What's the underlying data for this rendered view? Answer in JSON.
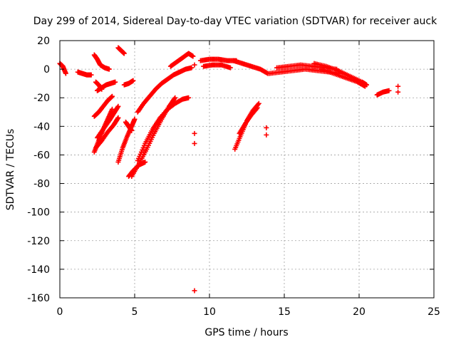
{
  "chart_data": {
    "type": "scatter",
    "title": "Day 299 of 2014, Sidereal Day-to-day VTEC variation (SDTVAR) for receiver auck",
    "xlabel": "GPS time / hours",
    "ylabel": "SDTVAR / TECUs",
    "xlim": [
      0,
      25
    ],
    "ylim": [
      -160,
      20
    ],
    "xticks": [
      0,
      5,
      10,
      15,
      20,
      25
    ],
    "yticks": [
      20,
      0,
      -20,
      -40,
      -60,
      -80,
      -100,
      -120,
      -140,
      -160
    ],
    "grid": true,
    "marker": "plus",
    "color": "#ff0000",
    "series": [
      {
        "name": "arc-early-0",
        "x": [
          0.0,
          0.2,
          0.4
        ],
        "y": [
          4,
          2,
          -3
        ]
      },
      {
        "name": "arc-early-1",
        "x": [
          1.2,
          1.5,
          1.8,
          2.1
        ],
        "y": [
          -2,
          -3,
          -4,
          -4
        ]
      },
      {
        "name": "arc-early-2",
        "x": [
          2.3,
          2.5,
          2.7,
          3.0,
          3.3
        ],
        "y": [
          10,
          7,
          3,
          1,
          0
        ]
      },
      {
        "name": "arc-early-3",
        "x": [
          2.4,
          2.6,
          2.8
        ],
        "y": [
          -9,
          -11,
          -14
        ]
      },
      {
        "name": "arc-early-4",
        "x": [
          2.5,
          2.8,
          3.1,
          3.4,
          3.7
        ],
        "y": [
          -15,
          -13,
          -11,
          -10,
          -9
        ]
      },
      {
        "name": "arc-early-5",
        "x": [
          3.9,
          4.1,
          4.3
        ],
        "y": [
          15,
          13,
          11
        ]
      },
      {
        "name": "arc-early-6",
        "x": [
          4.3,
          4.6,
          4.9
        ],
        "y": [
          -11,
          -10,
          -8
        ]
      },
      {
        "name": "arc-a",
        "x": [
          2.3,
          2.6,
          2.9,
          3.2,
          3.5
        ],
        "y": [
          -33,
          -30,
          -26,
          -22,
          -19
        ]
      },
      {
        "name": "arc-b",
        "x": [
          2.3,
          2.6,
          2.9,
          3.2,
          3.5
        ],
        "y": [
          -58,
          -50,
          -42,
          -35,
          -28
        ]
      },
      {
        "name": "arc-c",
        "x": [
          2.4,
          2.8,
          3.2,
          3.6,
          3.9
        ],
        "y": [
          -55,
          -50,
          -44,
          -39,
          -34
        ]
      },
      {
        "name": "arc-d",
        "x": [
          2.5,
          2.9,
          3.3,
          3.6,
          3.9
        ],
        "y": [
          -48,
          -42,
          -36,
          -31,
          -26
        ]
      },
      {
        "name": "arc-e",
        "x": [
          3.9,
          4.2,
          4.5,
          4.8,
          5.0
        ],
        "y": [
          -65,
          -55,
          -47,
          -40,
          -35
        ]
      },
      {
        "name": "arc-f",
        "x": [
          4.4,
          4.6,
          4.8
        ],
        "y": [
          -37,
          -40,
          -43
        ]
      },
      {
        "name": "arc-g",
        "x": [
          4.6,
          4.9,
          5.3,
          5.7
        ],
        "y": [
          -75,
          -71,
          -67,
          -65
        ]
      },
      {
        "name": "arc-h",
        "x": [
          5.2,
          5.6,
          6.0,
          6.4,
          6.8,
          7.2,
          7.6,
          8.0,
          8.4,
          8.8
        ],
        "y": [
          -30,
          -24,
          -19,
          -14,
          -10,
          -7,
          -4,
          -2,
          0,
          1
        ]
      },
      {
        "name": "arc-i",
        "x": [
          4.8,
          5.3,
          5.8,
          6.3,
          6.8,
          7.3,
          7.7
        ],
        "y": [
          -75,
          -66,
          -56,
          -45,
          -35,
          -26,
          -20
        ]
      },
      {
        "name": "arc-j",
        "x": [
          5.2,
          5.7,
          6.2,
          6.7,
          7.2,
          7.7,
          8.2,
          8.6
        ],
        "y": [
          -64,
          -52,
          -42,
          -34,
          -28,
          -24,
          -21,
          -20
        ]
      },
      {
        "name": "arc-k",
        "x": [
          7.4,
          7.8,
          8.2,
          8.6,
          8.9
        ],
        "y": [
          2,
          5,
          8,
          11,
          9
        ]
      },
      {
        "name": "arc-l",
        "x": [
          9.4,
          10.0,
          10.6,
          11.2,
          11.8
        ],
        "y": [
          6,
          7,
          7,
          6,
          6
        ]
      },
      {
        "name": "arc-m",
        "x": [
          9.6,
          10.2,
          10.8,
          11.4
        ],
        "y": [
          2,
          3,
          3,
          1
        ]
      },
      {
        "name": "arc-n",
        "x": [
          11.7,
          12.1,
          12.5,
          12.9,
          13.3
        ],
        "y": [
          -56,
          -46,
          -36,
          -29,
          -24
        ]
      },
      {
        "name": "arc-o",
        "x": [
          12.0,
          12.4,
          12.8,
          13.2
        ],
        "y": [
          -45,
          -38,
          -32,
          -27
        ]
      },
      {
        "name": "arc-p",
        "x": [
          11.6,
          12.2,
          12.8,
          13.4,
          13.9
        ],
        "y": [
          6,
          4,
          2,
          0,
          -3
        ]
      },
      {
        "name": "arc-q",
        "x": [
          14.0,
          14.8,
          15.6,
          16.4,
          17.2,
          18.0,
          18.8
        ],
        "y": [
          -3,
          -2,
          -1,
          0,
          -1,
          -2,
          -3
        ]
      },
      {
        "name": "arc-r",
        "x": [
          14.5,
          15.3,
          16.1,
          16.9,
          17.7,
          18.5
        ],
        "y": [
          1,
          2,
          3,
          2,
          1,
          0
        ]
      },
      {
        "name": "arc-s",
        "x": [
          17.0,
          17.8,
          18.6,
          19.4,
          20.2,
          20.5
        ],
        "y": [
          4,
          2,
          -1,
          -5,
          -9,
          -11
        ]
      },
      {
        "name": "arc-t",
        "x": [
          17.5,
          18.3,
          19.1,
          19.9,
          20.4
        ],
        "y": [
          0,
          -3,
          -6,
          -9,
          -12
        ]
      },
      {
        "name": "arc-u",
        "x": [
          21.2,
          21.6,
          22.0
        ],
        "y": [
          -18,
          -16,
          -15
        ]
      },
      {
        "name": "isolated",
        "x": [
          9.0,
          9.0,
          9.0,
          9.0,
          13.8,
          13.8,
          22.6,
          22.6
        ],
        "y": [
          -45,
          -52,
          -155,
          3,
          -41,
          -46,
          -12,
          -16
        ]
      }
    ]
  }
}
